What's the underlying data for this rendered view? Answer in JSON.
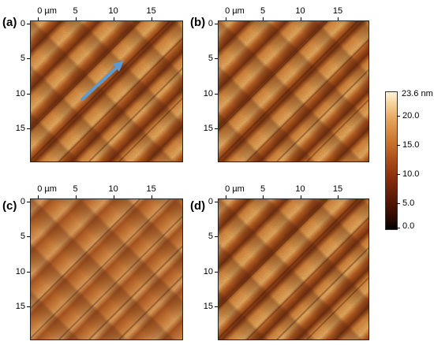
{
  "panels": [
    {
      "id": "a",
      "label": "(a)",
      "x_ticks": [
        "0 µm",
        "5",
        "10",
        "15"
      ],
      "y_ticks": [
        "0",
        "5",
        "10",
        "15"
      ],
      "has_arrow": true
    },
    {
      "id": "b",
      "label": "(b)",
      "x_ticks": [
        "0 µm",
        "5",
        "10",
        "15"
      ],
      "y_ticks": [
        "0",
        "5",
        "10",
        "15"
      ],
      "has_arrow": false
    },
    {
      "id": "c",
      "label": "(c)",
      "x_ticks": [
        "0 µm",
        "5",
        "10",
        "15"
      ],
      "y_ticks": [
        "0",
        "5",
        "10",
        "15"
      ],
      "has_arrow": false
    },
    {
      "id": "d",
      "label": "(d)",
      "x_ticks": [
        "0 µm",
        "5",
        "10",
        "15"
      ],
      "y_ticks": [
        "0",
        "5",
        "10",
        "15"
      ],
      "has_arrow": false
    }
  ],
  "colorbar": {
    "max_label": "23.6 nm",
    "ticks": [
      "20.0",
      "15.0",
      "10.0",
      "5.0",
      "0.0"
    ]
  },
  "colors": {
    "arrow": "#5b9bd5",
    "surface_dark": "#3a1204",
    "surface_mid": "#b25a1e",
    "surface_light": "#f2c27e"
  }
}
